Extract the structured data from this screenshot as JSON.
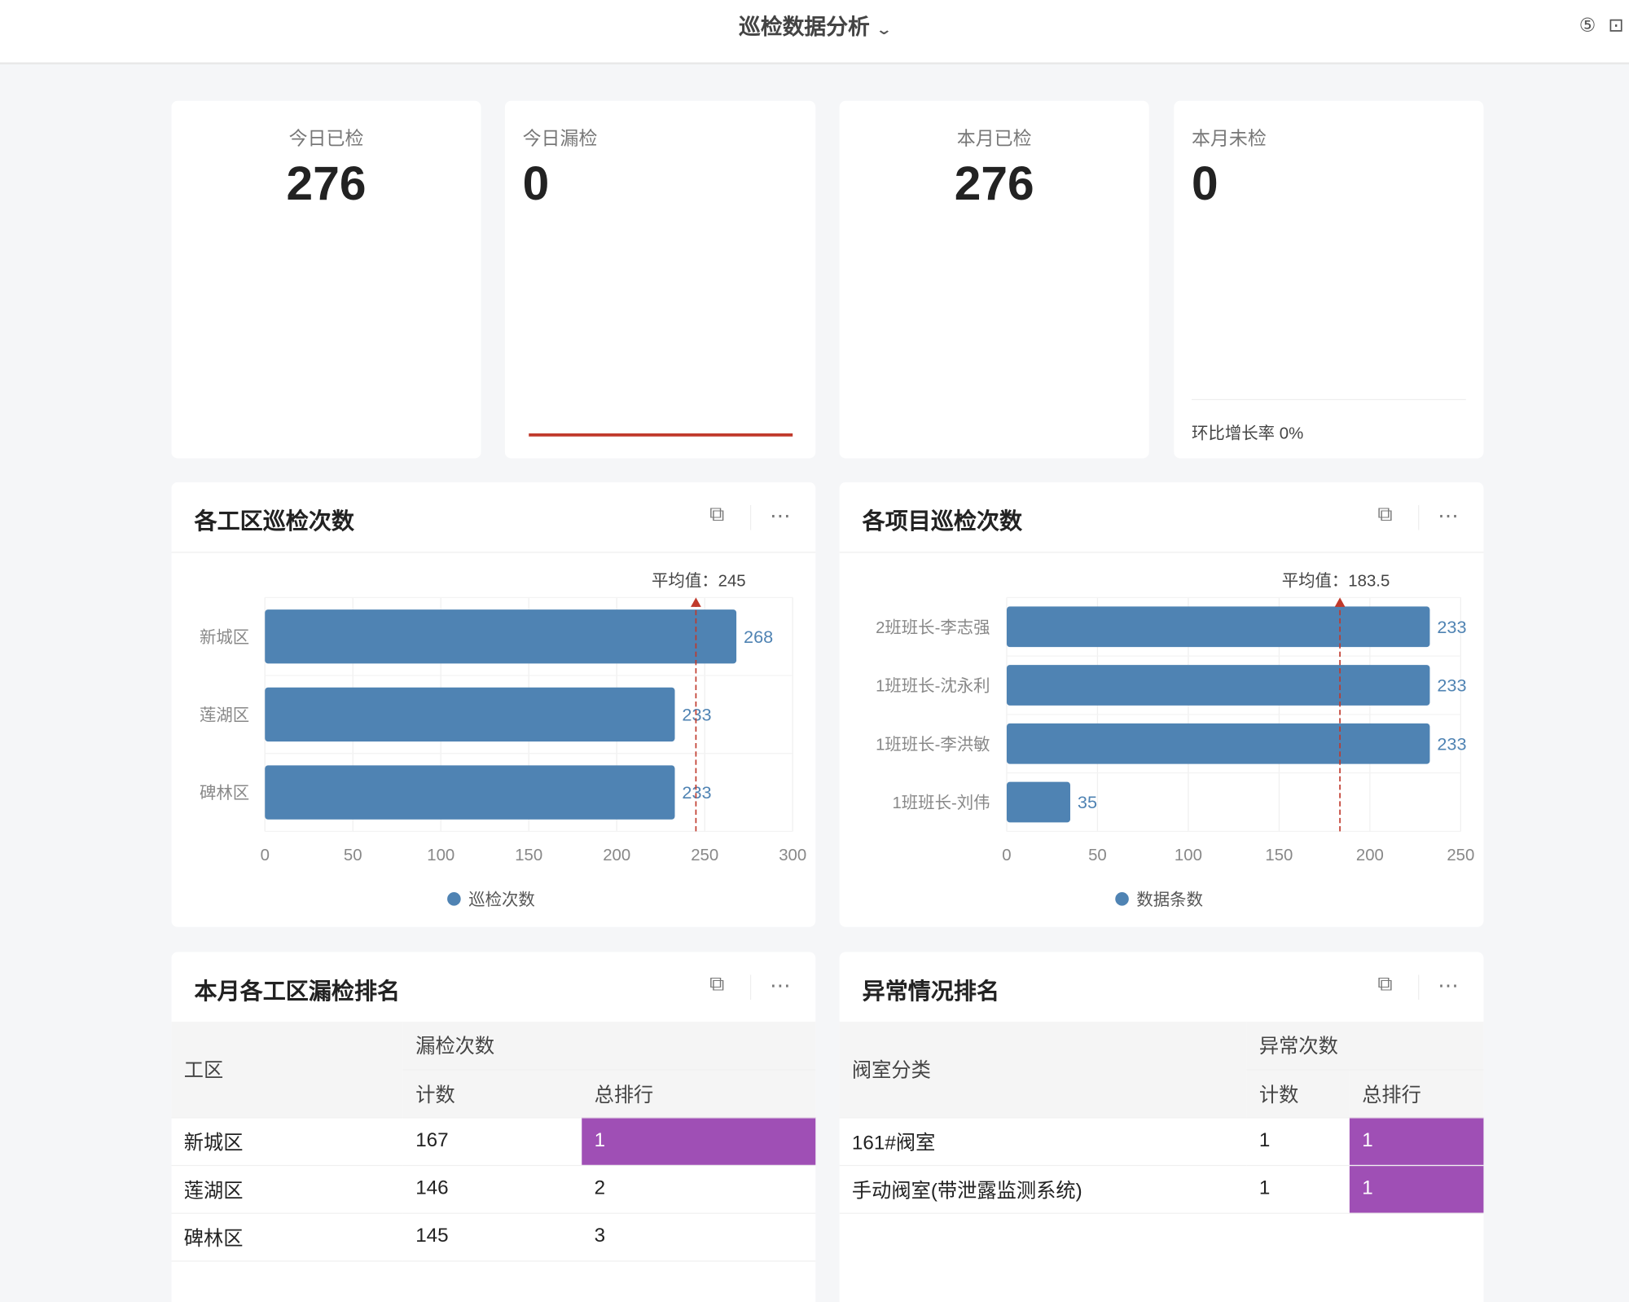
{
  "header": {
    "title": "巡检数据分析",
    "chevron": "chevron-down-icon",
    "icons": [
      "refresh-currency-icon",
      "fullscreen-icon"
    ]
  },
  "kpis": [
    {
      "label": "今日已检",
      "value": "276"
    },
    {
      "label": "今日漏检",
      "value": "0"
    },
    {
      "label": "本月已检",
      "value": "276"
    },
    {
      "label": "本月未检",
      "value": "0",
      "footer": "环比增长率 0%"
    }
  ],
  "colors": {
    "bar": "#4f83b3",
    "avg_line": "#c0392b",
    "rank_highlight": "#9f4fb5",
    "kpi_line": "#c0392b"
  },
  "chart_data": [
    {
      "type": "bar",
      "orientation": "horizontal",
      "title": "各工区巡检次数",
      "categories": [
        "新城区",
        "莲湖区",
        "碑林区"
      ],
      "series": [
        {
          "name": "巡检次数",
          "values": [
            268,
            233,
            233
          ]
        }
      ],
      "xlim": [
        0,
        300
      ],
      "ticks": [
        0,
        50,
        100,
        150,
        200,
        250,
        300
      ],
      "average": 245,
      "average_label": "平均值：245",
      "legend": "bottom",
      "grid": true
    },
    {
      "type": "bar",
      "orientation": "horizontal",
      "title": "各项目巡检次数",
      "categories": [
        "2班班长-李志强",
        "1班班长-沈永利",
        "1班班长-李洪敏",
        "1班班长-刘伟"
      ],
      "series": [
        {
          "name": "数据条数",
          "values": [
            233,
            233,
            233,
            35
          ]
        }
      ],
      "xlim": [
        0,
        250
      ],
      "ticks": [
        0,
        50,
        100,
        150,
        200,
        250
      ],
      "average": 183.5,
      "average_label": "平均值：183.5",
      "legend": "bottom",
      "grid": true
    }
  ],
  "tables": [
    {
      "title": "本月各工区漏检排名",
      "col1": "工区",
      "group": "漏检次数",
      "sub": [
        "计数",
        "总排行"
      ],
      "rows": [
        [
          "新城区",
          "167",
          "1"
        ],
        [
          "莲湖区",
          "146",
          "2"
        ],
        [
          "碑林区",
          "145",
          "3"
        ]
      ]
    },
    {
      "title": "异常情况排名",
      "col1": "阀室分类",
      "group": "异常次数",
      "sub": [
        "计数",
        "总排行"
      ],
      "rows": [
        [
          "161#阀室",
          "1",
          "1"
        ],
        [
          "手动阀室(带泄露监测系统)",
          "1",
          "1"
        ]
      ]
    }
  ]
}
